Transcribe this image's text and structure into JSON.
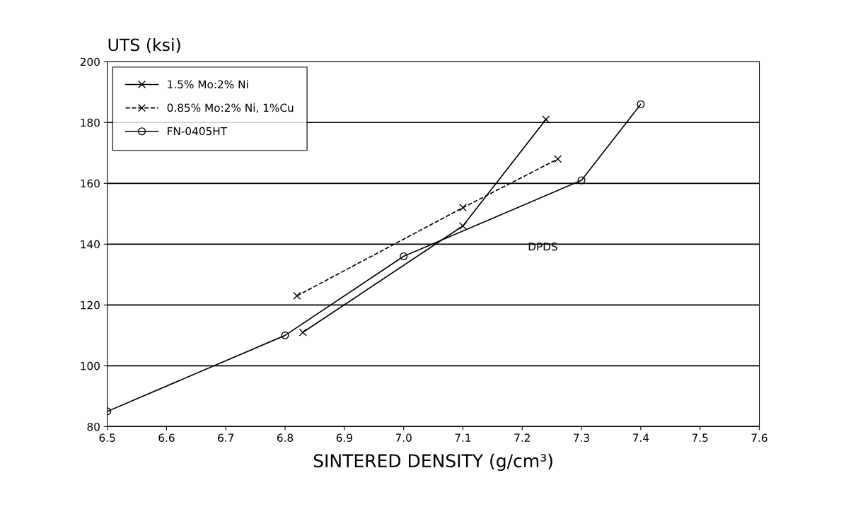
{
  "chart_data": {
    "type": "line",
    "xlabel": "SINTERED DENSITY (g/cm³)",
    "ylabel": "UTS (ksi)",
    "xlim": [
      6.5,
      7.6
    ],
    "ylim": [
      80,
      200
    ],
    "xticks": [
      6.5,
      6.6,
      6.7,
      6.8,
      6.9,
      {
        "value": 7,
        "label": "7.0"
      },
      7.1,
      7.2,
      7.3,
      7.4,
      7.5,
      7.6
    ],
    "yticks": [
      80,
      100,
      120,
      140,
      160,
      180,
      200
    ],
    "grid": "y",
    "legend": "top left",
    "annotations": [
      "DPDS"
    ],
    "series": [
      {
        "name": "1.5% Mo:2% Ni",
        "color": "#000000",
        "marker": "cross",
        "line_style": "solid",
        "x": [
          6.83,
          7.1,
          7.24
        ],
        "values": [
          111,
          146,
          181
        ]
      },
      {
        "name": "0.85% Mo:2% Ni, 1%Cu",
        "color": "#000000",
        "marker": "cross",
        "line_style": "dashed",
        "x": [
          6.82,
          7.1,
          7.26
        ],
        "values": [
          123,
          152,
          168
        ]
      },
      {
        "name": "FN-0405HT",
        "color": "#000000",
        "marker": "circle",
        "line_style": "solid",
        "x": [
          6.5,
          6.8,
          7.0,
          7.3,
          7.4
        ],
        "values": [
          85,
          110,
          136,
          161,
          186
        ]
      }
    ]
  }
}
